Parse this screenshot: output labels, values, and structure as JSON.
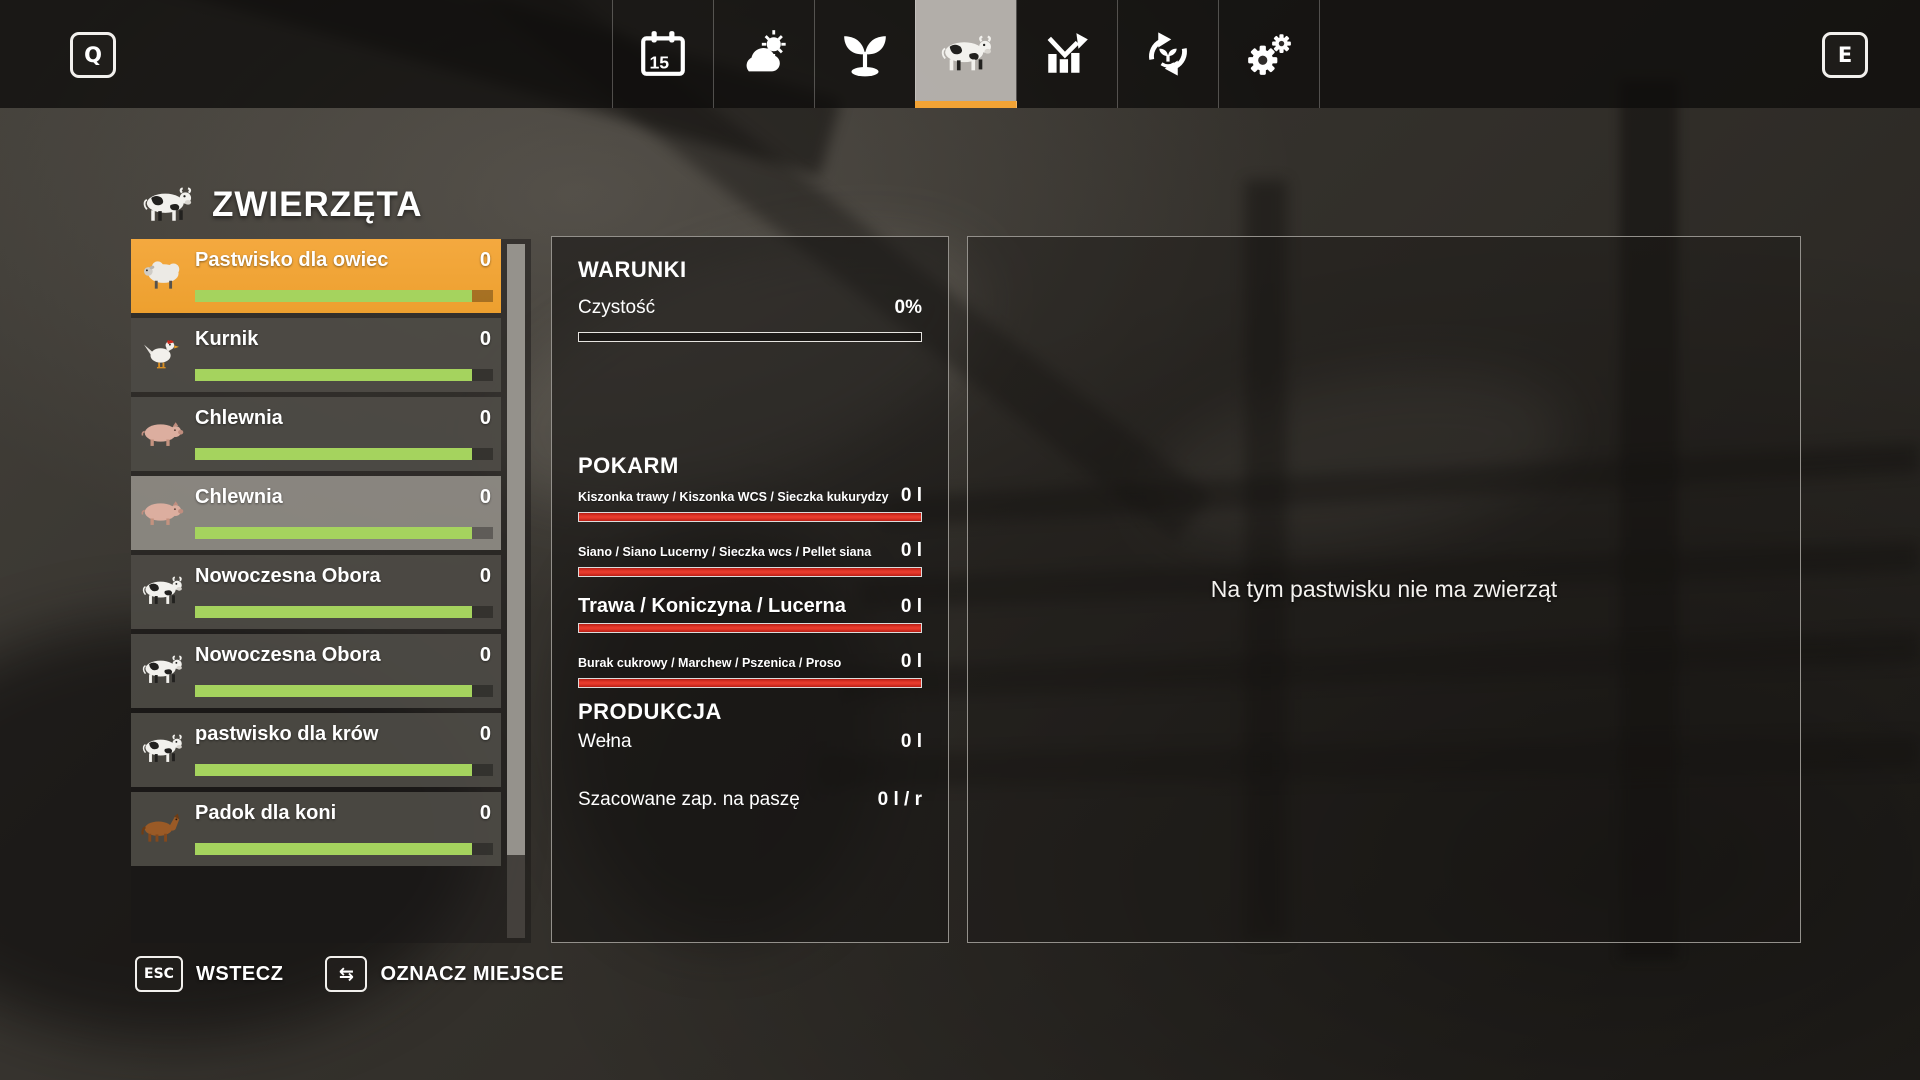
{
  "colors": {
    "accent_orange": "#f2a335",
    "selected_orange": "#f1a43c",
    "bar_green": "#a5d35e",
    "bar_red": "#e63a2c"
  },
  "topbar": {
    "prev_key": "Q",
    "next_key": "E",
    "calendar_day": "15",
    "tabs": [
      {
        "id": "calendar",
        "active": false
      },
      {
        "id": "weather",
        "active": false
      },
      {
        "id": "crops",
        "active": false
      },
      {
        "id": "animals",
        "active": true
      },
      {
        "id": "statistics",
        "active": false
      },
      {
        "id": "production",
        "active": false
      },
      {
        "id": "settings",
        "active": false
      }
    ]
  },
  "sidebar": {
    "title": "ZWIERZĘTA",
    "items": [
      {
        "label": "Pastwisko dla owiec",
        "count": "0",
        "animal": "sheep",
        "fill": 93,
        "state": "selected"
      },
      {
        "label": "Kurnik",
        "count": "0",
        "animal": "chicken",
        "fill": 93,
        "state": "normal"
      },
      {
        "label": "Chlewnia",
        "count": "0",
        "animal": "pig",
        "fill": 93,
        "state": "normal"
      },
      {
        "label": "Chlewnia",
        "count": "0",
        "animal": "pig",
        "fill": 93,
        "state": "hover"
      },
      {
        "label": "Nowoczesna Obora",
        "count": "0",
        "animal": "cow",
        "fill": 93,
        "state": "normal"
      },
      {
        "label": "Nowoczesna Obora",
        "count": "0",
        "animal": "cow",
        "fill": 93,
        "state": "normal"
      },
      {
        "label": "pastwisko dla krów",
        "count": "0",
        "animal": "cow",
        "fill": 93,
        "state": "normal"
      },
      {
        "label": "Padok dla koni",
        "count": "0",
        "animal": "horse",
        "fill": 93,
        "state": "normal"
      }
    ]
  },
  "details": {
    "conditions_heading": "WARUNKI",
    "cleanliness_label": "Czystość",
    "cleanliness_value": "0%",
    "cleanliness_fill": 0,
    "food_heading": "POKARM",
    "food_rows": [
      {
        "label": "Kiszonka trawy / Kiszonka WCS / Sieczka kukurydzy",
        "value": "0 l",
        "size": "small",
        "fill": 100
      },
      {
        "label": "Siano / Siano Lucerny / Sieczka wcs / Pellet siana",
        "value": "0 l",
        "size": "small",
        "fill": 100
      },
      {
        "label": "Trawa / Koniczyna / Lucerna",
        "value": "0 l",
        "size": "large",
        "fill": 100
      },
      {
        "label": "Burak cukrowy / Marchew / Pszenica / Proso",
        "value": "0 l",
        "size": "small",
        "fill": 100
      }
    ],
    "production_heading": "PRODUKCJA",
    "production_rows": [
      {
        "label": "Wełna",
        "value": "0 l"
      }
    ],
    "estimate_label": "Szacowane zap. na paszę",
    "estimate_value": "0 l / r"
  },
  "content_panel": {
    "empty_message": "Na tym pastwisku nie ma zwierząt"
  },
  "footer": {
    "back_key": "ESC",
    "back_label": "WSTECZ",
    "mark_key_glyph": "⇆",
    "mark_label": "OZNACZ MIEJSCE"
  }
}
